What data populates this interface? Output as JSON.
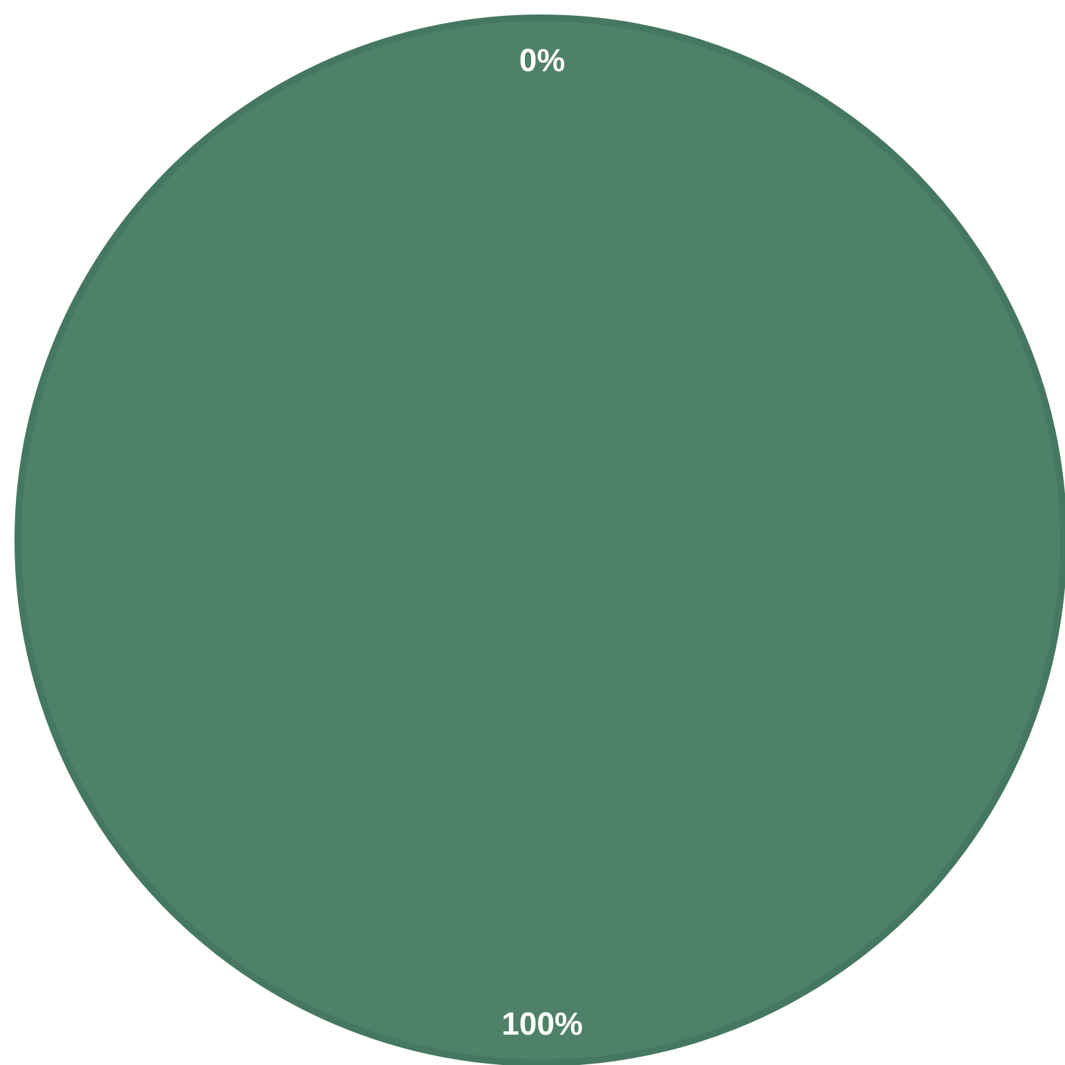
{
  "chart_data": {
    "type": "pie",
    "slices": [
      {
        "label": "0%",
        "value": 0,
        "color": "#4E8168"
      },
      {
        "label": "100%",
        "value": 100,
        "color": "#4E8168"
      }
    ],
    "colors": {
      "slice_fill": "#4E8168",
      "slice_border": "#467760",
      "data_label": "#FFFFFF"
    }
  }
}
